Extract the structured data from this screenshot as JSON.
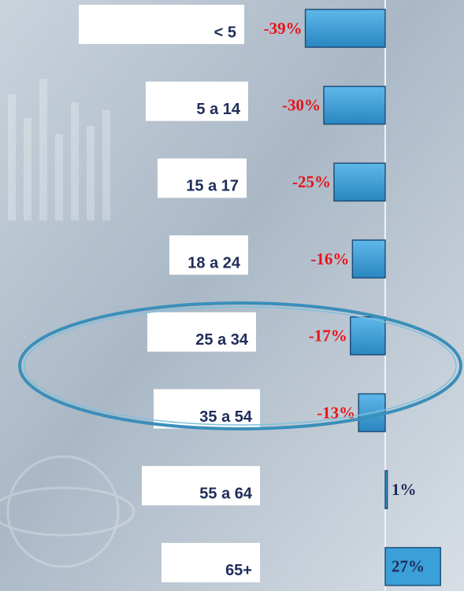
{
  "chart_data": {
    "type": "bar",
    "categories": [
      "< 5",
      "5 a 14",
      "15 a 17",
      "18 a 24",
      "25 a 34",
      "35 a 54",
      "55 a 64",
      "65+"
    ],
    "values": [
      -39,
      -30,
      -25,
      -16,
      -17,
      -13,
      1,
      27
    ],
    "value_labels": [
      "-39%",
      "-30%",
      "-25%",
      "-16%",
      "-17%",
      "-13%",
      "1%",
      "27%"
    ],
    "color": "#3b9fd8",
    "negative_label_color": "#e8121a",
    "positive_label_color": "#1f2d5a"
  }
}
